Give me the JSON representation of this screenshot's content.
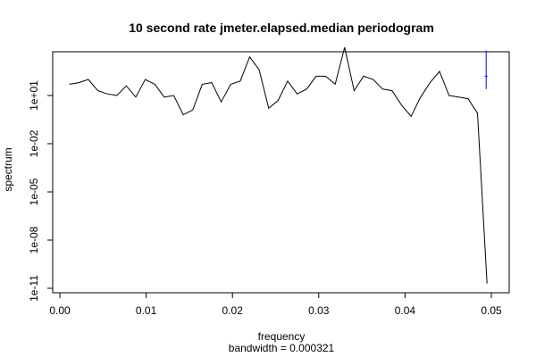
{
  "chart_data": {
    "type": "line",
    "title": "10 second rate jmeter.elapsed.median periodogram",
    "xlabel": "frequency",
    "sublabel": "bandwidth = 0.000321",
    "ylabel": "spectrum",
    "y_scale": "log",
    "xlim": [
      0.0,
      0.05
    ],
    "ylim_log10": [
      -11,
      2.5
    ],
    "x_ticks": [
      {
        "value": 0.0,
        "label": "0.00"
      },
      {
        "value": 0.01,
        "label": "0.01"
      },
      {
        "value": 0.02,
        "label": "0.02"
      },
      {
        "value": 0.03,
        "label": "0.03"
      },
      {
        "value": 0.04,
        "label": "0.04"
      },
      {
        "value": 0.05,
        "label": "0.05"
      }
    ],
    "y_ticks": [
      {
        "log10": -11,
        "label": "1e-11"
      },
      {
        "log10": -8,
        "label": "1e-08"
      },
      {
        "log10": -5,
        "label": "1e-05"
      },
      {
        "log10": -2,
        "label": "1e-02"
      },
      {
        "log10": 1,
        "label": "1e+01"
      }
    ],
    "series": [
      {
        "color": "#000000",
        "x": [
          0.0011,
          0.0022,
          0.0033,
          0.0044,
          0.0055,
          0.0066,
          0.0077,
          0.0088,
          0.0099,
          0.011,
          0.0121,
          0.0132,
          0.0143,
          0.0154,
          0.0165,
          0.0176,
          0.0187,
          0.0198,
          0.0209,
          0.022,
          0.0231,
          0.0242,
          0.0253,
          0.0264,
          0.0275,
          0.0286,
          0.0297,
          0.0308,
          0.0319,
          0.033,
          0.0341,
          0.0352,
          0.0363,
          0.0374,
          0.0385,
          0.0396,
          0.0407,
          0.0418,
          0.0429,
          0.044,
          0.0451,
          0.0462,
          0.0473,
          0.0484,
          0.0495
        ],
        "y_log10": [
          1.7,
          1.8,
          2.0,
          1.3,
          1.1,
          1.0,
          1.6,
          0.9,
          2.0,
          1.7,
          0.9,
          1.0,
          -0.2,
          0.1,
          1.7,
          1.8,
          0.6,
          1.7,
          1.9,
          3.4,
          2.6,
          0.2,
          0.7,
          1.9,
          1.1,
          1.4,
          2.2,
          2.2,
          1.7,
          4.0,
          1.3,
          2.2,
          2.0,
          1.4,
          1.3,
          0.4,
          -0.3,
          0.9,
          1.8,
          2.5,
          1.0,
          0.9,
          0.8,
          -0.1,
          -10.7
        ]
      }
    ],
    "annotation": {
      "color": "#0000ff",
      "x": 0.0494,
      "y_log10": 2.2,
      "y_low_log10": 1.4,
      "y_high_log10": 3.8,
      "half_width": 0.00016
    }
  }
}
